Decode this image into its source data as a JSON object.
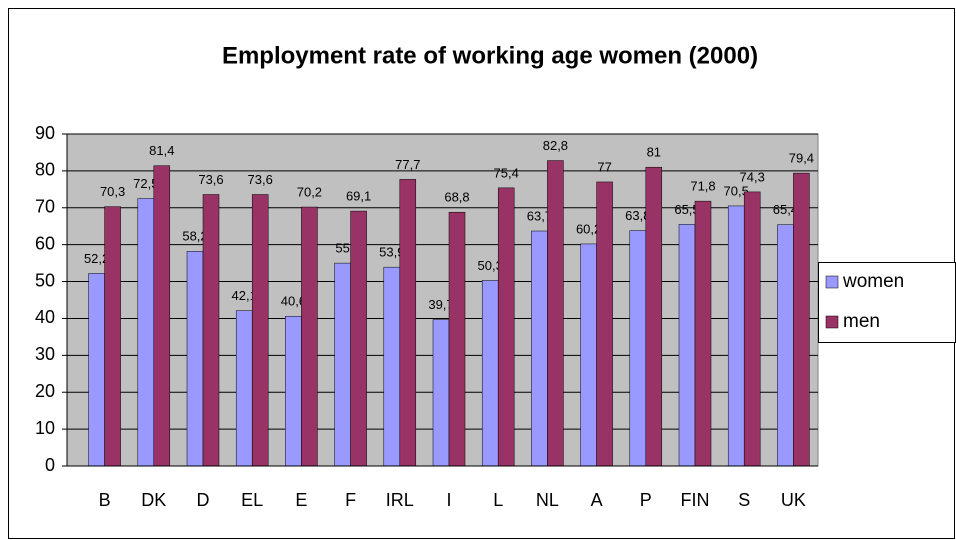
{
  "chart_data": {
    "type": "bar",
    "title": "Employment rate of working age women (2000)",
    "categories": [
      "B",
      "DK",
      "D",
      "EL",
      "E",
      "F",
      "IRL",
      "I",
      "L",
      "NL",
      "A",
      "P",
      "FIN",
      "S",
      "UK"
    ],
    "series": [
      {
        "name": "women",
        "color": "#9999ff",
        "values": [
          52.2,
          72.5,
          58.2,
          42.1,
          40.6,
          55,
          53.9,
          39.7,
          50.3,
          63.7,
          60.2,
          63.8,
          65.5,
          70.5,
          65.4
        ],
        "value_labels": [
          "52,2",
          "72,5",
          "58,2",
          "42,1",
          "40,6",
          "55",
          "53,9",
          "39,7",
          "50,3",
          "63,7",
          "60,2",
          "63,8",
          "65,5",
          "70,5",
          "65,4"
        ]
      },
      {
        "name": "men",
        "color": "#993366",
        "values": [
          70.3,
          81.4,
          73.6,
          73.6,
          70.2,
          69.1,
          77.7,
          68.8,
          75.4,
          82.8,
          77,
          81,
          71.8,
          74.3,
          79.4
        ],
        "value_labels": [
          "70,3",
          "81,4",
          "73,6",
          "73,6",
          "70,2",
          "69,1",
          "77,7",
          "68,8",
          "75,4",
          "82,8",
          "77",
          "81",
          "71,8",
          "74,3",
          "79,4"
        ]
      }
    ],
    "ylim": [
      0,
      90
    ],
    "yticks": [
      0,
      10,
      20,
      30,
      40,
      50,
      60,
      70,
      80,
      90
    ],
    "grid": true,
    "legend": "right"
  }
}
